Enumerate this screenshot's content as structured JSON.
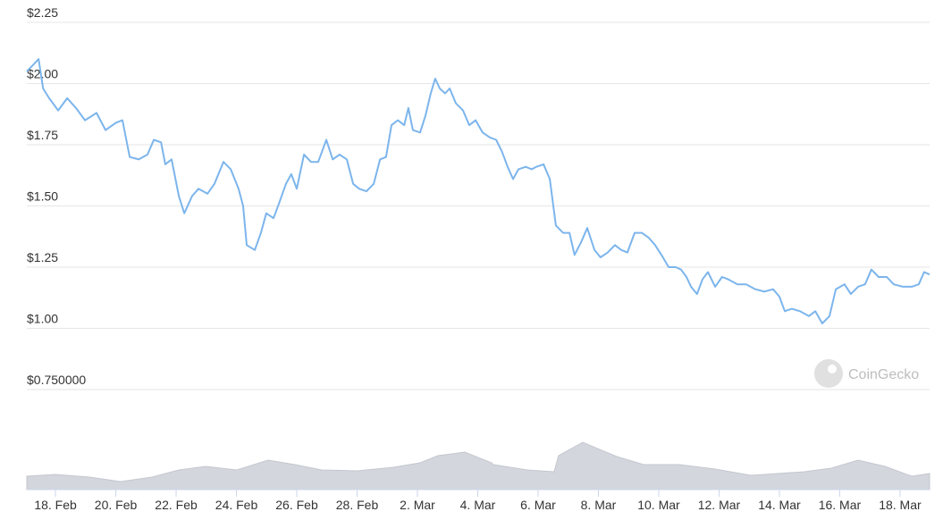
{
  "chart_data": {
    "type": "line",
    "watermark": "CoinGecko",
    "x": [
      48.05,
      48.29,
      48.44,
      48.59,
      48.79,
      49.09,
      49.39,
      49.68,
      49.98,
      50.36,
      50.66,
      51.01,
      51.22,
      51.46,
      51.76,
      52.05,
      52.26,
      52.5,
      52.64,
      52.85,
      53.09,
      53.27,
      53.53,
      53.74,
      54.04,
      54.27,
      54.57,
      54.81,
      55.07,
      55.22,
      55.34,
      55.61,
      55.81,
      55.99,
      56.23,
      56.41,
      56.64,
      56.82,
      57.0,
      57.24,
      57.47,
      57.71,
      57.98,
      58.19,
      58.42,
      58.66,
      58.87,
      59.07,
      59.31,
      59.55,
      59.76,
      59.96,
      60.14,
      60.35,
      60.56,
      60.7,
      60.85,
      61.09,
      61.27,
      61.44,
      61.59,
      61.74,
      61.92,
      62.07,
      62.27,
      62.51,
      62.72,
      62.93,
      63.16,
      63.4,
      63.61,
      63.81,
      63.99,
      64.17,
      64.35,
      64.59,
      64.79,
      64.94,
      65.18,
      65.39,
      65.59,
      65.83,
      66.04,
      66.21,
      66.42,
      66.63,
      66.87,
      67.07,
      67.31,
      67.55,
      67.76,
      67.96,
      68.2,
      68.44,
      68.67,
      68.88,
      69.09,
      69.33,
      69.56,
      69.74,
      69.92,
      70.07,
      70.27,
      70.45,
      70.63,
      70.87,
      71.1,
      71.31,
      71.61,
      71.9,
      72.2,
      72.5,
      72.79,
      73.0,
      73.18,
      73.41,
      73.68,
      73.98,
      74.19,
      74.42,
      74.66,
      74.87,
      75.16,
      75.37,
      75.61,
      75.84,
      76.05,
      76.29,
      76.56,
      76.79,
      77.09,
      77.39,
      77.62,
      77.8,
      77.98
    ],
    "series": [
      {
        "color": "#7cb5ec",
        "values": [
          2.05,
          2.08,
          2.1,
          1.98,
          1.94,
          1.89,
          1.94,
          1.9,
          1.85,
          1.88,
          1.81,
          1.84,
          1.85,
          1.7,
          1.69,
          1.71,
          1.77,
          1.76,
          1.67,
          1.69,
          1.54,
          1.47,
          1.54,
          1.57,
          1.55,
          1.59,
          1.68,
          1.65,
          1.57,
          1.5,
          1.34,
          1.32,
          1.39,
          1.47,
          1.45,
          1.51,
          1.59,
          1.63,
          1.57,
          1.71,
          1.68,
          1.68,
          1.77,
          1.69,
          1.71,
          1.69,
          1.59,
          1.57,
          1.56,
          1.59,
          1.69,
          1.7,
          1.83,
          1.85,
          1.83,
          1.9,
          1.81,
          1.8,
          1.87,
          1.96,
          2.02,
          1.98,
          1.96,
          1.98,
          1.92,
          1.89,
          1.83,
          1.85,
          1.8,
          1.78,
          1.77,
          1.72,
          1.66,
          1.61,
          1.65,
          1.66,
          1.65,
          1.66,
          1.67,
          1.61,
          1.42,
          1.39,
          1.39,
          1.3,
          1.35,
          1.41,
          1.32,
          1.29,
          1.31,
          1.34,
          1.32,
          1.31,
          1.39,
          1.39,
          1.37,
          1.34,
          1.3,
          1.25,
          1.25,
          1.24,
          1.21,
          1.17,
          1.14,
          1.2,
          1.23,
          1.17,
          1.21,
          1.2,
          1.18,
          1.18,
          1.16,
          1.15,
          1.16,
          1.13,
          1.07,
          1.08,
          1.07,
          1.05,
          1.07,
          1.02,
          1.05,
          1.16,
          1.18,
          1.14,
          1.17,
          1.18,
          1.24,
          1.21,
          1.21,
          1.18,
          1.17,
          1.17,
          1.18,
          1.23,
          1.22
        ]
      }
    ],
    "volume": {
      "color": "#d3d6dd",
      "ylim": [
        0,
        80
      ],
      "x": [
        48.05,
        49.0,
        50.13,
        51.16,
        52.2,
        53.09,
        53.98,
        55.01,
        56.05,
        56.94,
        57.83,
        59.01,
        60.2,
        61.09,
        61.68,
        62.57,
        63.46,
        63.52,
        64.64,
        65.53,
        65.68,
        66.48,
        67.61,
        68.5,
        69.68,
        70.87,
        72.05,
        72.94,
        73.83,
        74.72,
        75.61,
        76.5,
        77.39,
        77.98
      ],
      "values": [
        15,
        17,
        14,
        9,
        14,
        22,
        26,
        22,
        33,
        28,
        22,
        21,
        25,
        30,
        38,
        42,
        30,
        28,
        22,
        20,
        38,
        53,
        37,
        28,
        28,
        23,
        16,
        18,
        20,
        24,
        33,
        26,
        15,
        18
      ]
    },
    "xlim": [
      48.05,
      77.98
    ],
    "xticks": [
      {
        "value": 49,
        "label": "18. Feb"
      },
      {
        "value": 51,
        "label": "20. Feb"
      },
      {
        "value": 53,
        "label": "22. Feb"
      },
      {
        "value": 55,
        "label": "24. Feb"
      },
      {
        "value": 57,
        "label": "26. Feb"
      },
      {
        "value": 59,
        "label": "28. Feb"
      },
      {
        "value": 61,
        "label": "2. Mar"
      },
      {
        "value": 63,
        "label": "4. Mar"
      },
      {
        "value": 65,
        "label": "6. Mar"
      },
      {
        "value": 67,
        "label": "8. Mar"
      },
      {
        "value": 69,
        "label": "10. Mar"
      },
      {
        "value": 71,
        "label": "12. Mar"
      },
      {
        "value": 73,
        "label": "14. Mar"
      },
      {
        "value": 75,
        "label": "16. Mar"
      },
      {
        "value": 77,
        "label": "18. Mar"
      }
    ],
    "ylim": [
      0.75,
      2.25
    ],
    "yticks": [
      {
        "value": 0.75,
        "label": "$0.750000"
      },
      {
        "value": 1.0,
        "label": "$1.00"
      },
      {
        "value": 1.25,
        "label": "$1.25"
      },
      {
        "value": 1.5,
        "label": "$1.50"
      },
      {
        "value": 1.75,
        "label": "$1.75"
      },
      {
        "value": 2.0,
        "label": "$2.00"
      },
      {
        "value": 2.25,
        "label": "$2.25"
      }
    ],
    "grid": true
  }
}
